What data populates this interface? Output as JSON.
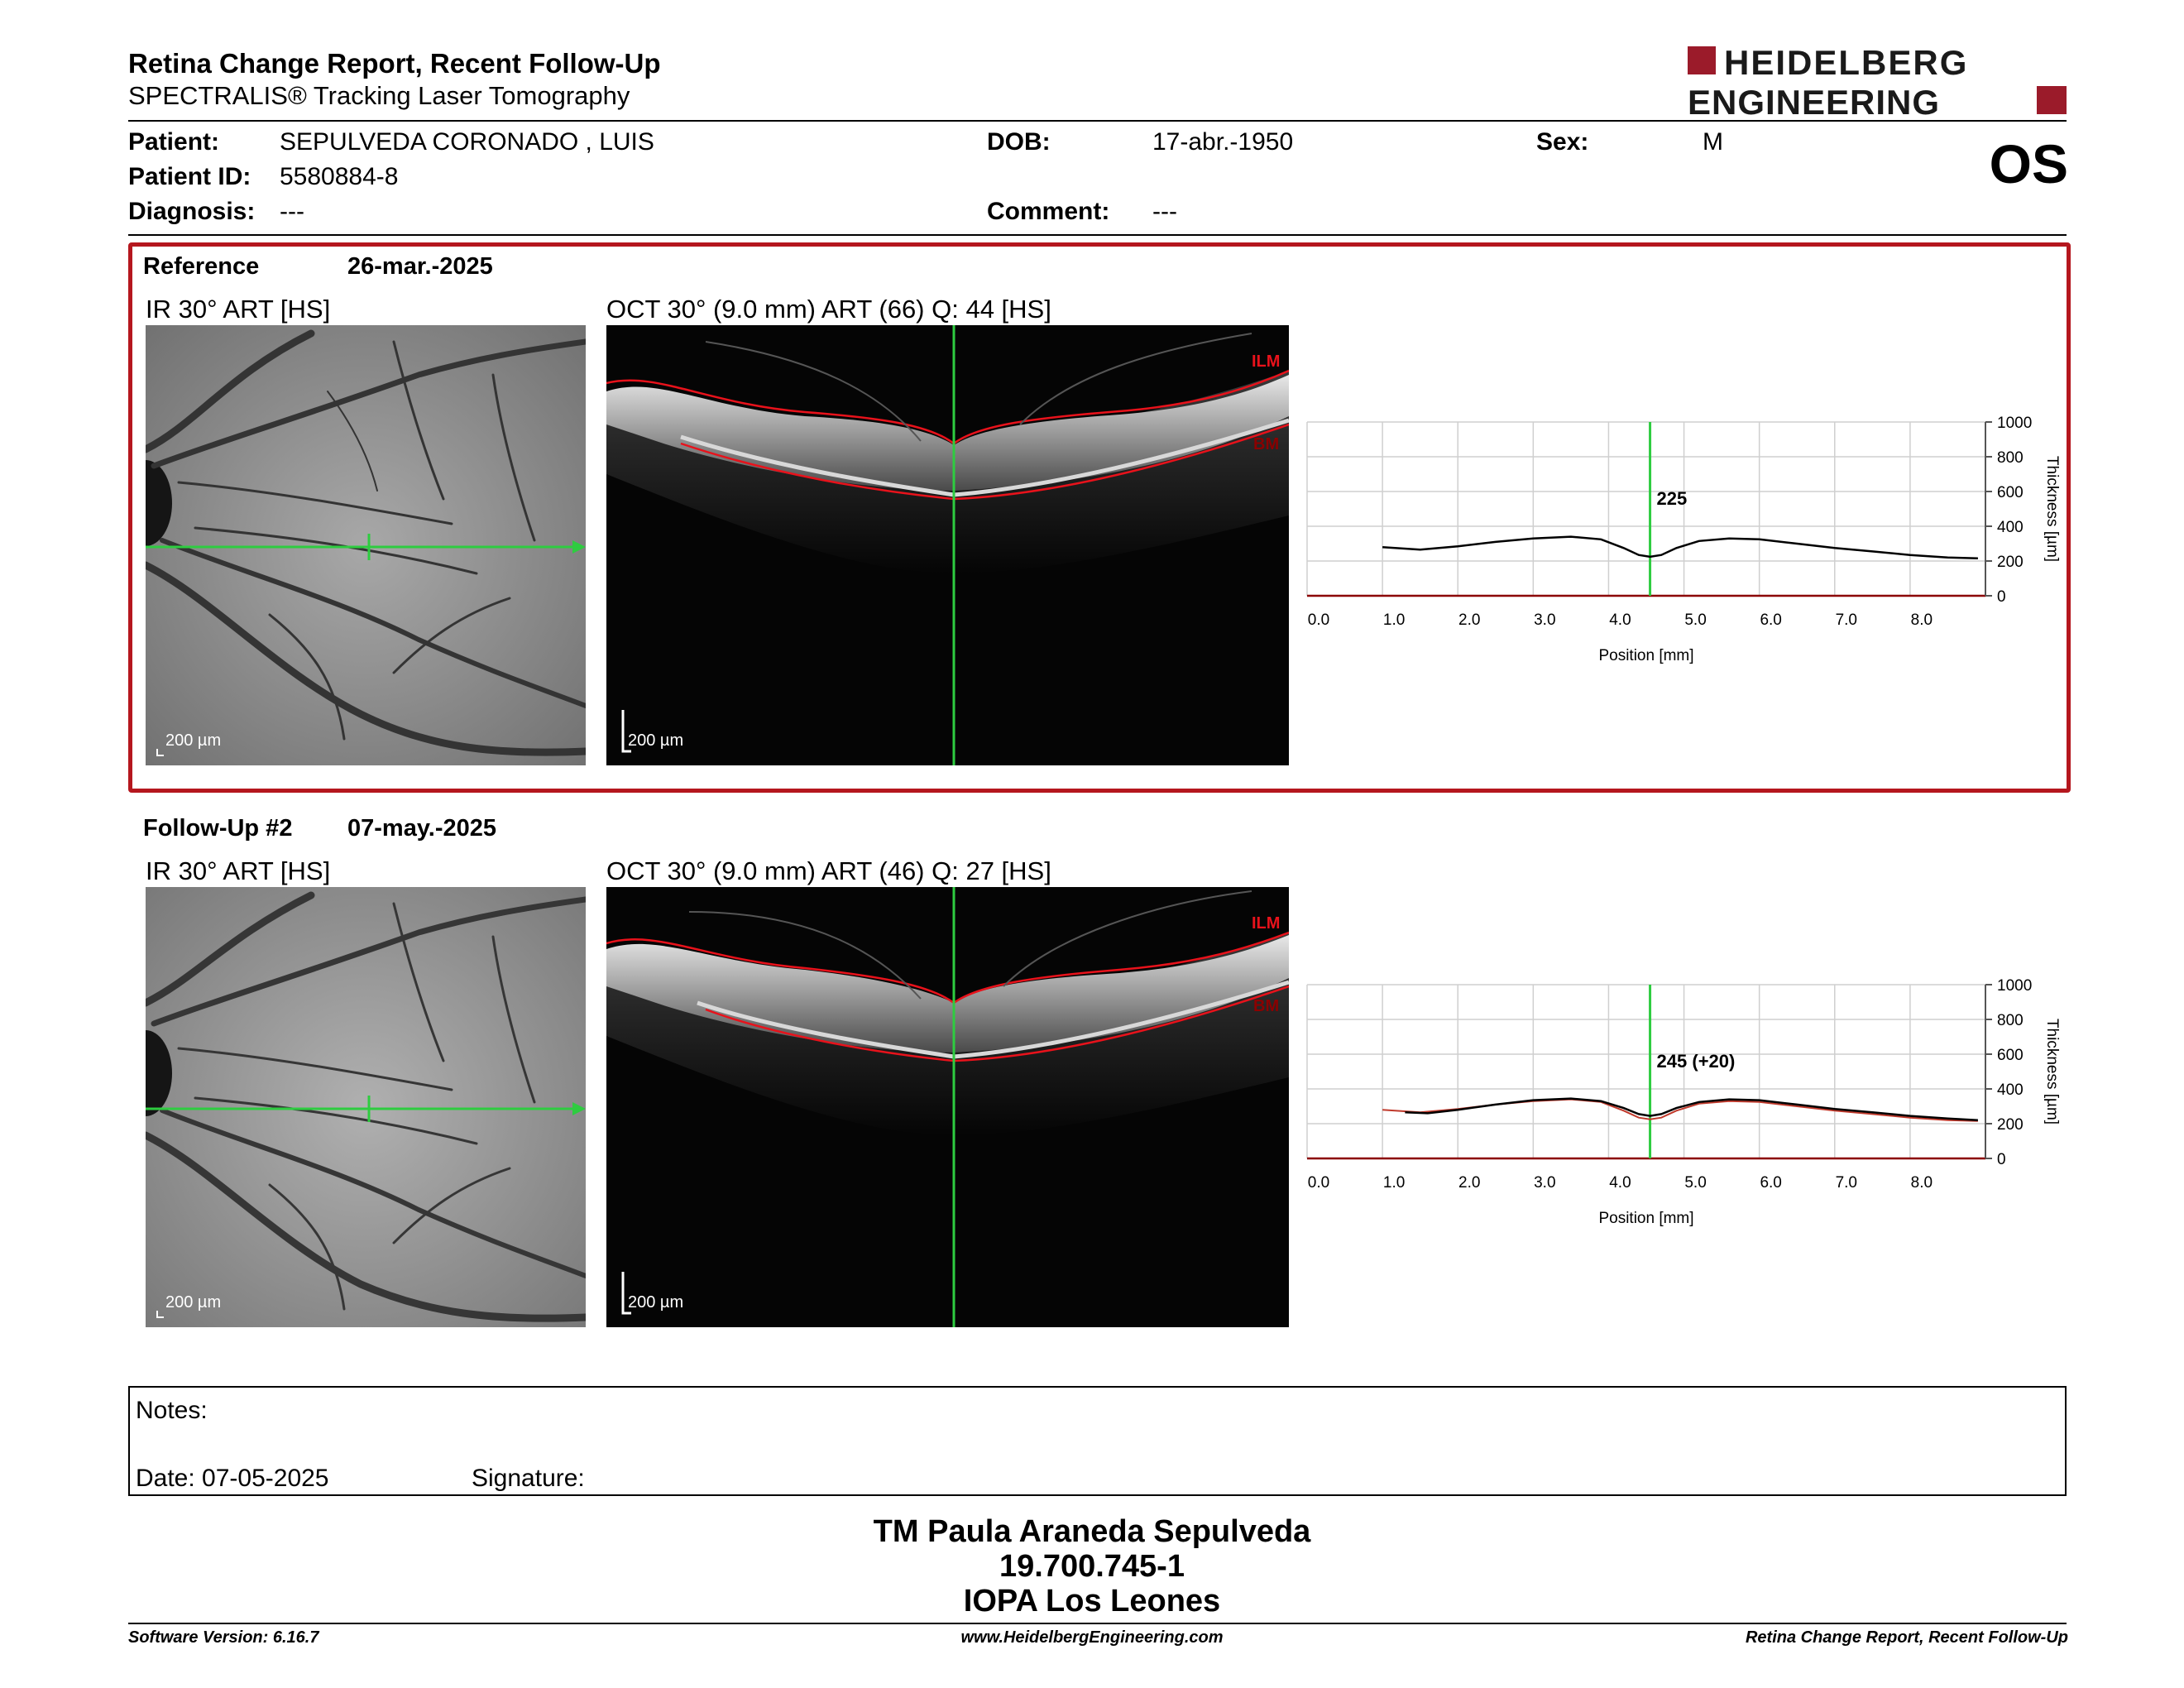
{
  "header": {
    "title": "Retina Change Report, Recent Follow-Up",
    "subtitle": "SPECTRALIS® Tracking Laser Tomography",
    "eye": "OS",
    "logo_line1": "HEIDELBERG",
    "logo_line2": "ENGINEERING",
    "brand_color": "#9b1b2a"
  },
  "patient": {
    "patient_label": "Patient:",
    "patient_value": "SEPULVEDA CORONADO , LUIS",
    "id_label": "Patient ID:",
    "id_value": "5580884-8",
    "diagnosis_label": "Diagnosis:",
    "diagnosis_value": "---",
    "dob_label": "DOB:",
    "dob_value": "17-abr.-1950",
    "comment_label": "Comment:",
    "comment_value": "---",
    "sex_label": "Sex:",
    "sex_value": "M"
  },
  "reference": {
    "label": "Reference",
    "date": "26-mar.-2025",
    "ir_label": "IR 30° ART [HS]",
    "oct_label": "OCT 30° (9.0 mm) ART (66) Q: 44 [HS]",
    "scale_ir": "200 µm",
    "scale_oct": "200 µm",
    "ilm": "ILM",
    "bm": "BM"
  },
  "followup": {
    "label": "Follow-Up #2",
    "date": "07-may.-2025",
    "ir_label": "IR 30° ART [HS]",
    "oct_label": "OCT 30° (9.0 mm) ART (46) Q: 27 [HS]",
    "scale_ir": "200 µm",
    "scale_oct": "200 µm",
    "ilm": "ILM",
    "bm": "BM"
  },
  "chart_data": [
    {
      "type": "line",
      "xlabel": "Position [mm]",
      "ylabel": "Thickness [µm]",
      "xlim": [
        0,
        9
      ],
      "ylim": [
        0,
        1000
      ],
      "xticks": [
        "0.0",
        "1.0",
        "2.0",
        "3.0",
        "4.0",
        "5.0",
        "6.0",
        "7.0",
        "8.0"
      ],
      "yticks": [
        "0",
        "200",
        "400",
        "600",
        "800",
        "1000"
      ],
      "cursor_x": 4.55,
      "cursor_label": "225",
      "x": [
        1.0,
        1.5,
        2.0,
        2.5,
        3.0,
        3.5,
        3.9,
        4.2,
        4.4,
        4.55,
        4.7,
        4.9,
        5.2,
        5.6,
        6.0,
        6.5,
        7.0,
        7.5,
        8.0,
        8.5,
        8.9
      ],
      "values": [
        280,
        265,
        285,
        310,
        330,
        340,
        325,
        275,
        235,
        225,
        235,
        275,
        315,
        330,
        325,
        300,
        275,
        255,
        235,
        220,
        215
      ]
    },
    {
      "type": "line",
      "xlabel": "Position [mm]",
      "ylabel": "Thickness [µm]",
      "xlim": [
        0,
        9
      ],
      "ylim": [
        0,
        1000
      ],
      "xticks": [
        "0.0",
        "1.0",
        "2.0",
        "3.0",
        "4.0",
        "5.0",
        "6.0",
        "7.0",
        "8.0"
      ],
      "yticks": [
        "0",
        "200",
        "400",
        "600",
        "800",
        "1000"
      ],
      "cursor_x": 4.55,
      "cursor_label": "245 (+20)",
      "x": [
        1.3,
        1.6,
        2.0,
        2.5,
        3.0,
        3.5,
        3.9,
        4.2,
        4.4,
        4.55,
        4.7,
        4.9,
        5.2,
        5.6,
        6.0,
        6.5,
        7.0,
        7.5,
        8.0,
        8.5,
        8.9
      ],
      "values": [
        265,
        260,
        280,
        310,
        335,
        345,
        330,
        290,
        255,
        245,
        255,
        290,
        325,
        340,
        335,
        310,
        285,
        265,
        245,
        230,
        220
      ]
    }
  ],
  "notes": {
    "notes_label": "Notes:",
    "date_label": "Date: 07-05-2025",
    "signature_label": "Signature:"
  },
  "signature": {
    "name": "TM Paula Araneda Sepulveda",
    "id": "19.700.745-1",
    "org": "IOPA Los Leones"
  },
  "footer": {
    "software": "Software Version: 6.16.7",
    "website": "www.HeidelbergEngineering.com",
    "report": "Retina Change Report, Recent Follow-Up"
  }
}
